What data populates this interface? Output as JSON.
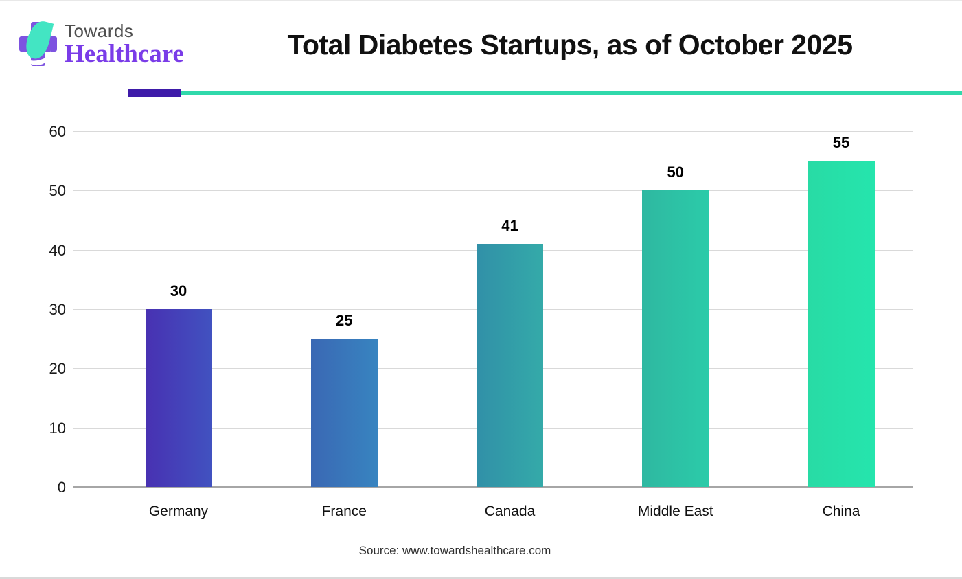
{
  "header": {
    "logo": {
      "line1": "Towards",
      "line2": "Healthcare"
    },
    "title": "Total Diabetes Startups, as of October 2025"
  },
  "divider": {
    "accent_color": "#3e1ba9",
    "line_color": "#30d9ab"
  },
  "chart_data": {
    "type": "bar",
    "categories": [
      "Germany",
      "France",
      "Canada",
      "Middle East",
      "China"
    ],
    "values": [
      30,
      25,
      41,
      50,
      55
    ],
    "title": "Total Diabetes Startups, as of October 2025",
    "xlabel": "",
    "ylabel": "",
    "ylim": [
      0,
      60
    ],
    "yticks": [
      0,
      10,
      20,
      30,
      40,
      50,
      60
    ],
    "grid": true,
    "legend": false,
    "bar_colors": [
      [
        "#4831b2",
        "#4152c0"
      ],
      [
        "#3a68b4",
        "#3884c0"
      ],
      [
        "#3190a8",
        "#34aaa9"
      ],
      [
        "#2fb8a1",
        "#2bcba9"
      ],
      [
        "#28dba5",
        "#25e5ad"
      ]
    ],
    "gridline_color": "#d9d9d9",
    "axis_line_color": "#a6a6a6"
  },
  "source": "Source: www.towardshealthcare.com"
}
